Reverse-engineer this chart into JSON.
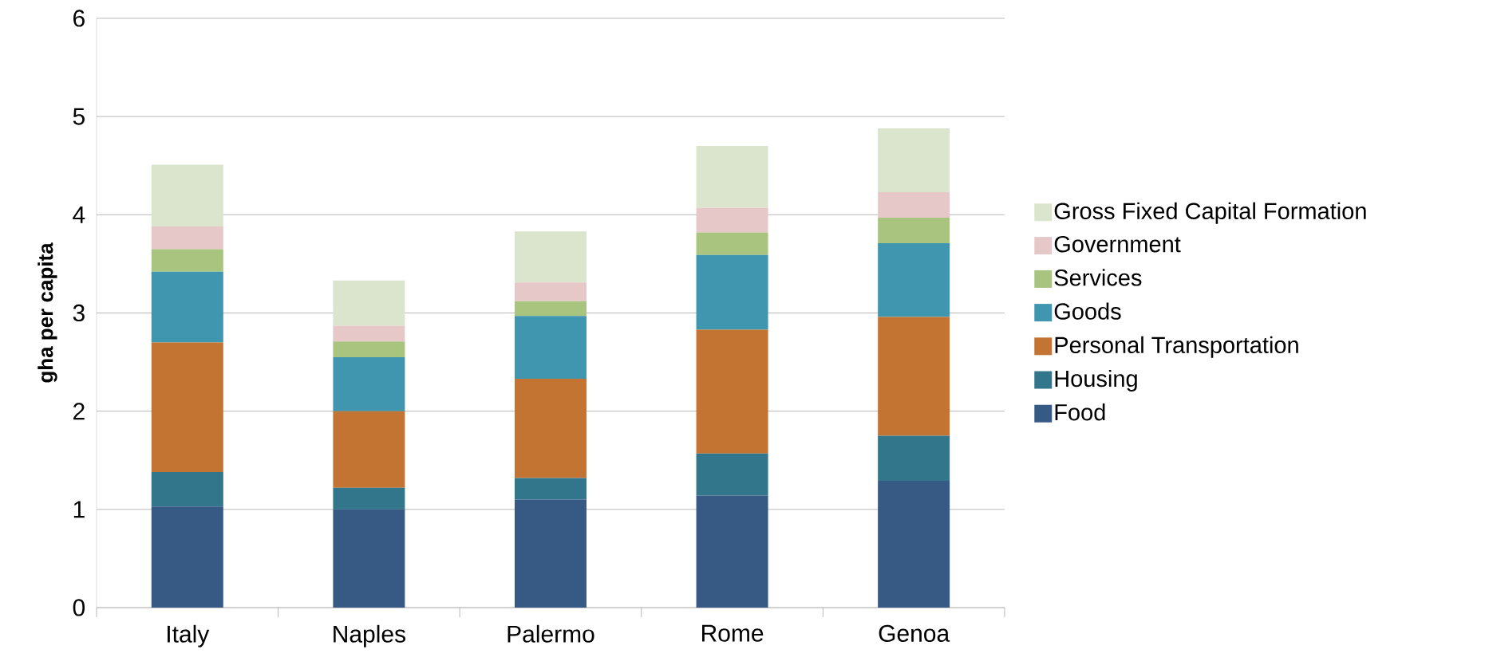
{
  "chart_data": {
    "type": "bar",
    "stacked": true,
    "ylabel": "gha per capita",
    "categories": [
      "Italy",
      "Naples",
      "Palermo",
      "Rome",
      "Genoa"
    ],
    "series": [
      {
        "name": "Food",
        "color": "#375a84",
        "values": [
          1.03,
          1.0,
          1.1,
          1.14,
          1.29
        ]
      },
      {
        "name": "Housing",
        "color": "#31768a",
        "values": [
          0.35,
          0.22,
          0.22,
          0.43,
          0.46
        ]
      },
      {
        "name": "Personal Transportation",
        "color": "#c37432",
        "values": [
          1.32,
          0.78,
          1.01,
          1.26,
          1.21
        ]
      },
      {
        "name": "Goods",
        "color": "#4096ae",
        "values": [
          0.72,
          0.55,
          0.64,
          0.76,
          0.75
        ]
      },
      {
        "name": "Services",
        "color": "#a9c47f",
        "values": [
          0.23,
          0.16,
          0.15,
          0.23,
          0.26
        ]
      },
      {
        "name": "Government",
        "color": "#e6c8c9",
        "values": [
          0.23,
          0.16,
          0.19,
          0.25,
          0.26
        ]
      },
      {
        "name": "Gross Fixed Capital Formation",
        "color": "#dbe5cd",
        "values": [
          0.63,
          0.46,
          0.52,
          0.63,
          0.65
        ]
      }
    ],
    "ylim": [
      0,
      6
    ],
    "yticks": [
      0,
      1,
      2,
      3,
      4,
      5,
      6
    ],
    "grid": "y",
    "legend": "right"
  }
}
